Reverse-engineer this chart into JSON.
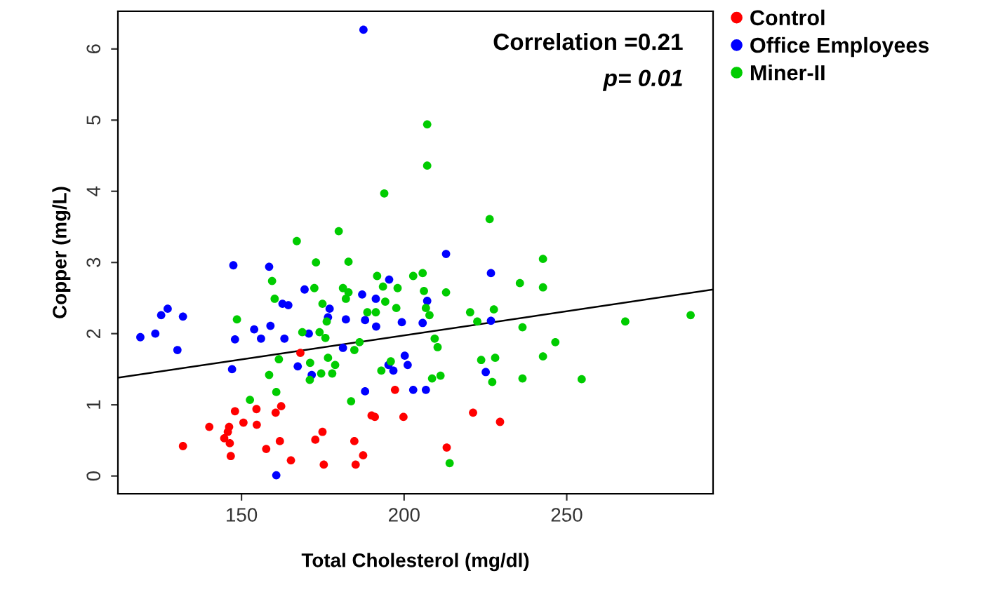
{
  "chart_data": {
    "type": "scatter",
    "xlabel": "Total Cholesterol (mg/dl)",
    "ylabel": "Copper (mg/L)",
    "xlim": [
      112,
      295
    ],
    "ylim": [
      -0.25,
      6.53
    ],
    "xticks": [
      150,
      200,
      250
    ],
    "yticks": [
      0,
      1,
      2,
      3,
      4,
      5,
      6
    ],
    "grid": false,
    "legend": "top right",
    "marker": "circle",
    "annotations": [
      "Correlation =0.21",
      "p= 0.01"
    ],
    "series": [
      {
        "name": "Control",
        "color": "#ff0000",
        "x": [
          148.0,
          154.6,
          162.2,
          160.5,
          140.1,
          150.6,
          154.7,
          146.2,
          145.8,
          144.7,
          146.4,
          132.0,
          146.7,
          157.6,
          161.8,
          165.2,
          172.7,
          174.9,
          175.3,
          184.7,
          185.1,
          187.4,
          190.0,
          191.0,
          199.8,
          197.2,
          168.1,
          221.2,
          229.5,
          213.1
        ],
        "values": [
          0.91,
          0.94,
          0.98,
          0.89,
          0.69,
          0.75,
          0.72,
          0.69,
          0.62,
          0.53,
          0.46,
          0.42,
          0.28,
          0.38,
          0.49,
          0.22,
          0.51,
          0.62,
          0.16,
          0.49,
          0.16,
          0.29,
          0.85,
          0.83,
          0.83,
          1.21,
          1.73,
          0.89,
          0.76,
          0.4
        ]
      },
      {
        "name": "Office Employees",
        "color": "#0000ff",
        "x": [
          147.5,
          158.5,
          127.3,
          125.3,
          132.0,
          118.9,
          123.5,
          130.3,
          169.4,
          162.6,
          164.4,
          177.1,
          176.6,
          153.9,
          158.9,
          148.0,
          156.0,
          163.2,
          170.7,
          182.1,
          187.1,
          191.3,
          195.4,
          188.0,
          190.9,
          191.4,
          199.3,
          205.7,
          207.1,
          181.2,
          147.1,
          167.3,
          171.6,
          188.0,
          200.2,
          195.2,
          196.7,
          201.1,
          202.8,
          206.7,
          160.7,
          212.9,
          226.7,
          226.7,
          225.1,
          187.5
        ],
        "values": [
          2.96,
          2.94,
          2.35,
          2.26,
          2.24,
          1.95,
          2.0,
          1.77,
          2.62,
          2.42,
          2.4,
          2.35,
          2.23,
          2.06,
          2.11,
          1.92,
          1.93,
          1.93,
          2.0,
          2.2,
          2.55,
          2.49,
          2.76,
          2.19,
          null,
          2.1,
          2.16,
          2.15,
          2.46,
          1.8,
          1.5,
          1.54,
          1.42,
          1.19,
          1.69,
          1.56,
          1.48,
          1.56,
          1.21,
          1.21,
          0.01,
          3.12,
          2.85,
          2.18,
          1.46,
          6.27
        ]
      },
      {
        "name": "Miner-II",
        "color": "#00cc00",
        "x": [
          207.1,
          207.1,
          193.9,
          179.9,
          167.0,
          226.3,
          172.9,
          182.9,
          159.4,
          160.2,
          172.4,
          181.2,
          182.9,
          182.1,
          191.7,
          193.5,
          198.0,
          194.2,
          197.6,
          202.8,
          205.7,
          206.1,
          206.7,
          174.9,
          188.7,
          191.3,
          176.2,
          148.6,
          168.7,
          174.0,
          175.8,
          186.3,
          184.7,
          161.5,
          176.6,
          171.1,
          178.8,
          158.5,
          174.5,
          177.9,
          171.0,
          195.9,
          193.0,
          160.7,
          152.6,
          183.7,
          242.7,
          235.6,
          242.7,
          212.9,
          207.8,
          220.3,
          227.6,
          222.5,
          236.4,
          268.0,
          288.1,
          209.4,
          210.3,
          246.5,
          223.7,
          228.0,
          242.7,
          208.6,
          211.2,
          227.1,
          236.4,
          254.6,
          214.0
        ],
        "values": [
          4.94,
          4.36,
          3.97,
          3.44,
          3.3,
          3.61,
          3.0,
          3.01,
          2.74,
          2.49,
          2.64,
          2.64,
          2.58,
          2.49,
          2.81,
          2.66,
          2.64,
          2.45,
          2.36,
          2.81,
          2.85,
          2.6,
          2.36,
          2.42,
          2.3,
          2.3,
          2.17,
          2.2,
          2.02,
          2.02,
          1.94,
          1.88,
          1.77,
          1.64,
          1.66,
          1.59,
          1.56,
          1.42,
          1.44,
          1.44,
          1.35,
          1.61,
          1.48,
          1.18,
          1.07,
          1.05,
          3.05,
          2.71,
          2.65,
          2.58,
          2.26,
          2.3,
          2.34,
          2.17,
          2.09,
          2.17,
          2.26,
          1.93,
          1.81,
          1.88,
          1.63,
          1.66,
          1.68,
          1.37,
          1.41,
          1.32,
          1.37,
          1.36,
          0.18
        ]
      },
      {
        "type": "line",
        "color": "#000000",
        "line_style": "solid",
        "marker": "none",
        "x": [
          112,
          295
        ],
        "values": [
          1.38,
          2.62
        ]
      }
    ]
  }
}
